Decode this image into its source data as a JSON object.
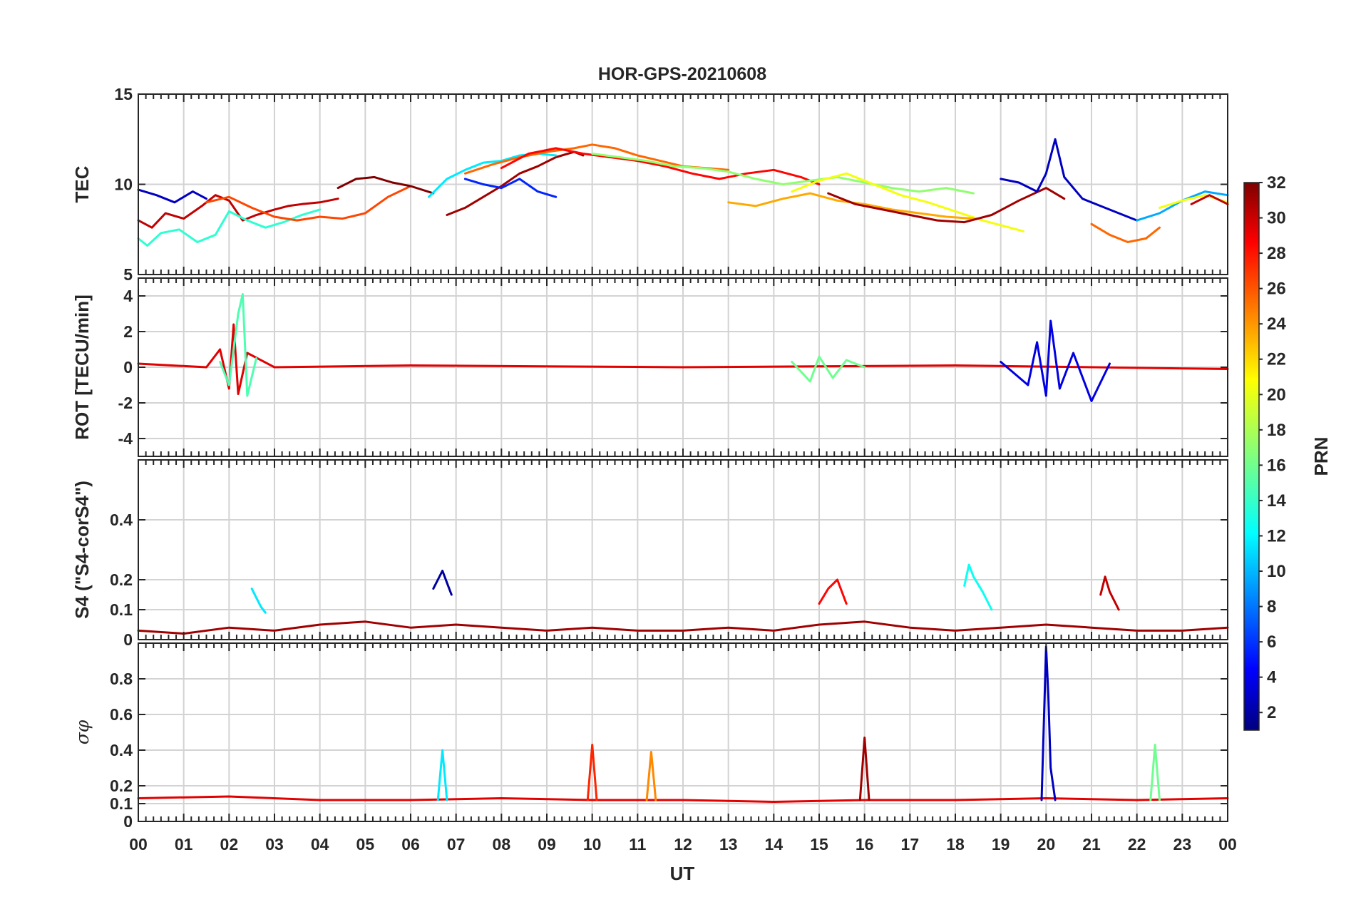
{
  "chart_data": {
    "type": "line",
    "title": "HOR-GPS-20210608",
    "xlabel": "UT",
    "x_tick_labels": [
      "00",
      "01",
      "02",
      "03",
      "04",
      "05",
      "06",
      "07",
      "08",
      "09",
      "10",
      "11",
      "12",
      "13",
      "14",
      "15",
      "16",
      "17",
      "18",
      "19",
      "20",
      "21",
      "22",
      "23",
      "00"
    ],
    "xlim": [
      0,
      24
    ],
    "grid": true,
    "colormap": "jet",
    "colorbar": {
      "label": "PRN",
      "range": [
        1,
        32
      ],
      "tick_labels": [
        "2",
        "4",
        "6",
        "8",
        "10",
        "12",
        "14",
        "16",
        "18",
        "20",
        "22",
        "24",
        "26",
        "28",
        "30",
        "32"
      ]
    },
    "panels": [
      {
        "id": "tec",
        "ylabel": "TEC",
        "ylim": [
          5,
          15
        ],
        "y_ticks": [
          5,
          10,
          15
        ],
        "y_tick_labels": [
          "5",
          "10",
          "15"
        ],
        "series": [
          {
            "prn": 30,
            "x": [
              0,
              0.3,
              0.6,
              1.0,
              1.4,
              1.7,
              2.0,
              2.3,
              2.6,
              3.0,
              3.3,
              3.6,
              4.0,
              4.4
            ],
            "y": [
              8.0,
              7.6,
              8.4,
              8.1,
              8.8,
              9.4,
              9.1,
              8.0,
              8.3,
              8.6,
              8.8,
              8.9,
              9.0,
              9.2
            ]
          },
          {
            "prn": 14,
            "x": [
              0,
              0.2,
              0.5,
              0.9,
              1.3,
              1.7,
              2.0,
              2.4,
              2.8,
              3.2,
              3.6,
              4.0
            ],
            "y": [
              7.0,
              6.6,
              7.3,
              7.5,
              6.8,
              7.2,
              8.5,
              8.0,
              7.6,
              7.9,
              8.3,
              8.6
            ]
          },
          {
            "prn": 3,
            "x": [
              0,
              0.4,
              0.8,
              1.2,
              1.5
            ],
            "y": [
              9.7,
              9.4,
              9.0,
              9.6,
              9.2
            ]
          },
          {
            "prn": 26,
            "x": [
              1.5,
              2.0,
              2.5,
              3.0,
              3.5,
              4.0,
              4.5,
              5.0,
              5.5,
              6.0
            ],
            "y": [
              9.0,
              9.3,
              8.7,
              8.2,
              8.0,
              8.2,
              8.1,
              8.4,
              9.3,
              9.9
            ]
          },
          {
            "prn": 32,
            "x": [
              4.4,
              4.8,
              5.2,
              5.6,
              6.0,
              6.5
            ],
            "y": [
              9.8,
              10.3,
              10.4,
              10.1,
              9.9,
              9.5
            ]
          },
          {
            "prn": 31,
            "x": [
              6.8,
              7.2,
              7.6,
              8.0,
              8.4,
              8.8,
              9.2,
              9.6,
              9.8
            ],
            "y": [
              8.3,
              8.7,
              9.3,
              9.9,
              10.6,
              11.0,
              11.5,
              11.8,
              11.6
            ]
          },
          {
            "prn": 12,
            "x": [
              6.4,
              6.8,
              7.2,
              7.6,
              8.0,
              8.4,
              8.8,
              9.2
            ],
            "y": [
              9.3,
              10.3,
              10.8,
              11.2,
              11.3,
              11.6,
              11.7,
              11.6
            ]
          },
          {
            "prn": 25,
            "x": [
              7.2,
              7.8,
              8.4,
              9.0,
              9.6,
              10.0,
              10.5,
              11.0,
              11.5,
              12.0,
              12.5,
              13.0
            ],
            "y": [
              10.6,
              11.1,
              11.5,
              11.8,
              12.0,
              12.2,
              12.0,
              11.6,
              11.3,
              11.0,
              10.9,
              10.8
            ]
          },
          {
            "prn": 28,
            "x": [
              8.0,
              8.6,
              9.2,
              9.8,
              10.4,
              11.0,
              11.6,
              12.2,
              12.8,
              13.4,
              14.0,
              14.6,
              15.0
            ],
            "y": [
              10.9,
              11.7,
              12.0,
              11.7,
              11.5,
              11.3,
              11.0,
              10.6,
              10.3,
              10.6,
              10.8,
              10.4,
              10.0
            ]
          },
          {
            "prn": 17,
            "x": [
              10.0,
              10.6,
              11.2,
              11.8,
              12.4,
              13.0,
              13.6,
              14.2,
              14.8,
              15.4,
              16.0,
              16.6,
              17.2,
              17.8,
              18.4
            ],
            "y": [
              11.7,
              11.5,
              11.3,
              11.0,
              10.9,
              10.7,
              10.3,
              10.0,
              10.2,
              10.4,
              10.1,
              9.8,
              9.6,
              9.8,
              9.5
            ]
          },
          {
            "prn": 6,
            "x": [
              7.2,
              7.6,
              8.0,
              8.4,
              8.8,
              9.2
            ],
            "y": [
              10.3,
              10.0,
              9.8,
              10.3,
              9.6,
              9.3
            ]
          },
          {
            "prn": 20,
            "x": [
              14.4,
              15.0,
              15.6,
              16.2,
              16.8,
              17.4,
              18.0,
              18.6,
              19.2,
              19.5
            ],
            "y": [
              9.6,
              10.2,
              10.6,
              10.0,
              9.4,
              9.0,
              8.5,
              8.0,
              7.6,
              7.4
            ]
          },
          {
            "prn": 23,
            "x": [
              13.0,
              13.6,
              14.2,
              14.8,
              15.4,
              16.0,
              16.6,
              17.2,
              17.8,
              18.4
            ],
            "y": [
              9.0,
              8.8,
              9.2,
              9.5,
              9.1,
              8.9,
              8.6,
              8.4,
              8.2,
              8.1
            ]
          },
          {
            "prn": 31,
            "x": [
              15.2,
              15.8,
              16.4,
              17.0,
              17.6,
              18.2,
              18.8,
              19.4,
              20.0,
              20.4
            ],
            "y": [
              9.5,
              8.9,
              8.6,
              8.3,
              8.0,
              7.9,
              8.3,
              9.1,
              9.8,
              9.2
            ]
          },
          {
            "prn": 3,
            "x": [
              19.0,
              19.4,
              19.8,
              20.0,
              20.2,
              20.4,
              20.8,
              21.2,
              21.6,
              22.0
            ],
            "y": [
              10.3,
              10.1,
              9.6,
              10.6,
              12.5,
              10.4,
              9.2,
              8.8,
              8.4,
              8.0
            ]
          },
          {
            "prn": 25,
            "x": [
              21.0,
              21.4,
              21.8,
              22.2,
              22.5
            ],
            "y": [
              7.8,
              7.2,
              6.8,
              7.0,
              7.6
            ]
          },
          {
            "prn": 10,
            "x": [
              22.0,
              22.5,
              23.0,
              23.5,
              24.0
            ],
            "y": [
              8.0,
              8.4,
              9.1,
              9.6,
              9.4
            ]
          },
          {
            "prn": 20,
            "x": [
              22.5,
              23.0,
              23.5,
              24.0
            ],
            "y": [
              8.7,
              9.1,
              9.4,
              9.0
            ]
          },
          {
            "prn": 30,
            "x": [
              23.2,
              23.6,
              24.0
            ],
            "y": [
              8.9,
              9.4,
              8.9
            ]
          }
        ]
      },
      {
        "id": "rot",
        "ylabel": "ROT [TECU/min]",
        "ylim": [
          -5,
          5
        ],
        "y_ticks": [
          -4,
          -2,
          0,
          2,
          4
        ],
        "y_tick_labels": [
          "-4",
          "-2",
          "0",
          "2",
          "4"
        ],
        "series": [
          {
            "prn": 29,
            "x": [
              0,
              1.5,
              1.8,
              2.0,
              2.1,
              2.2,
              2.4,
              3.0,
              6.0,
              12.0,
              18.0,
              24.0
            ],
            "y": [
              0.2,
              0.0,
              1.0,
              -1.2,
              2.4,
              -1.5,
              0.8,
              0.0,
              0.1,
              0.0,
              0.1,
              -0.1
            ]
          },
          {
            "prn": 15,
            "x": [
              1.8,
              2.0,
              2.2,
              2.3,
              2.4,
              2.6
            ],
            "y": [
              0.3,
              -1.0,
              3.0,
              4.1,
              -1.6,
              0.5
            ]
          },
          {
            "prn": 4,
            "x": [
              19.0,
              19.6,
              19.8,
              20.0,
              20.1,
              20.3,
              20.6,
              21.0,
              21.4
            ],
            "y": [
              0.3,
              -1.0,
              1.4,
              -1.6,
              2.6,
              -1.2,
              0.8,
              -1.9,
              0.2
            ]
          },
          {
            "prn": 16,
            "x": [
              14.4,
              14.8,
              15.0,
              15.3,
              15.6,
              16.0
            ],
            "y": [
              0.3,
              -0.8,
              0.6,
              -0.6,
              0.4,
              0.0
            ]
          }
        ]
      },
      {
        "id": "s4",
        "ylabel": "S4 (\"S4-corS4\")",
        "ylim": [
          0,
          0.6
        ],
        "y_ticks": [
          0,
          0.1,
          0.2,
          0.4
        ],
        "y_tick_labels": [
          "0",
          "0.1",
          "0.2",
          "0.4"
        ],
        "series": [
          {
            "prn": 31,
            "x": [
              0,
              1,
              2,
              3,
              4,
              5,
              6,
              7,
              8,
              9,
              10,
              11,
              12,
              13,
              14,
              15,
              16,
              17,
              18,
              19,
              20,
              21,
              22,
              23,
              24
            ],
            "y": [
              0.03,
              0.02,
              0.04,
              0.03,
              0.05,
              0.06,
              0.04,
              0.05,
              0.04,
              0.03,
              0.04,
              0.03,
              0.03,
              0.04,
              0.03,
              0.05,
              0.06,
              0.04,
              0.03,
              0.04,
              0.05,
              0.04,
              0.03,
              0.03,
              0.04
            ]
          },
          {
            "prn": 2,
            "x": [
              6.5,
              6.6,
              6.7,
              6.8,
              6.9
            ],
            "y": [
              0.17,
              0.2,
              0.23,
              0.19,
              0.15
            ]
          },
          {
            "prn": 12,
            "x": [
              2.5,
              2.6,
              2.7,
              2.8
            ],
            "y": [
              0.17,
              0.14,
              0.11,
              0.09
            ]
          },
          {
            "prn": 13,
            "x": [
              18.2,
              18.3,
              18.4,
              18.6,
              18.8
            ],
            "y": [
              0.18,
              0.25,
              0.21,
              0.16,
              0.1
            ]
          },
          {
            "prn": 28,
            "x": [
              15.0,
              15.2,
              15.4,
              15.6
            ],
            "y": [
              0.12,
              0.17,
              0.2,
              0.12
            ]
          },
          {
            "prn": 30,
            "x": [
              21.2,
              21.3,
              21.4,
              21.6
            ],
            "y": [
              0.15,
              0.21,
              0.16,
              0.1
            ]
          }
        ]
      },
      {
        "id": "sigma_phi",
        "ylabel": "σφ",
        "ylim": [
          0,
          1
        ],
        "y_ticks": [
          0,
          0.1,
          0.2,
          0.4,
          0.6,
          0.8
        ],
        "y_tick_labels": [
          "0",
          "0.1",
          "0.2",
          "0.4",
          "0.6",
          "0.8"
        ],
        "series": [
          {
            "prn": 29,
            "x": [
              0,
              2,
              4,
              6,
              8,
              10,
              12,
              14,
              16,
              18,
              20,
              22,
              24
            ],
            "y": [
              0.13,
              0.14,
              0.12,
              0.12,
              0.13,
              0.12,
              0.12,
              0.11,
              0.12,
              0.12,
              0.13,
              0.12,
              0.13
            ]
          },
          {
            "prn": 3,
            "x": [
              19.9,
              20.0,
              20.05,
              20.1,
              20.2
            ],
            "y": [
              0.12,
              0.98,
              0.7,
              0.3,
              0.12
            ]
          },
          {
            "prn": 31,
            "x": [
              15.9,
              16.0,
              16.1
            ],
            "y": [
              0.12,
              0.47,
              0.12
            ]
          },
          {
            "prn": 27,
            "x": [
              9.9,
              10.0,
              10.1
            ],
            "y": [
              0.12,
              0.43,
              0.12
            ]
          },
          {
            "prn": 16,
            "x": [
              22.3,
              22.4,
              22.5
            ],
            "y": [
              0.12,
              0.43,
              0.12
            ]
          },
          {
            "prn": 24,
            "x": [
              11.2,
              11.3,
              11.4
            ],
            "y": [
              0.12,
              0.39,
              0.12
            ]
          },
          {
            "prn": 12,
            "x": [
              6.6,
              6.7,
              6.8
            ],
            "y": [
              0.12,
              0.4,
              0.12
            ]
          }
        ]
      }
    ]
  }
}
